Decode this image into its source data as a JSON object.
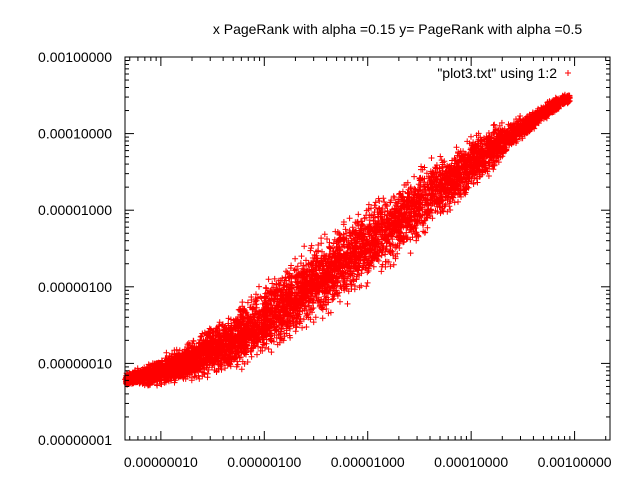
{
  "chart_data": {
    "type": "scatter",
    "title": "x PageRank with alpha =0.15 y= PageRank with alpha =0.5",
    "xlabel": "",
    "ylabel": "",
    "x_scale": "log",
    "y_scale": "log",
    "xlim": [
      4.5e-08,
      0.0022
    ],
    "ylim": [
      1e-08,
      0.001
    ],
    "x_ticks": [
      1e-07,
      1e-06,
      1e-05,
      0.0001,
      0.001
    ],
    "x_tick_labels": [
      "0.00000010",
      "0.00000100",
      "0.00001000",
      "0.00010000",
      "0.00100000"
    ],
    "y_ticks": [
      1e-08,
      1e-07,
      1e-06,
      1e-05,
      0.0001,
      0.001
    ],
    "y_tick_labels": [
      "0.00000001",
      "0.00000010",
      "0.00000100",
      "0.00001000",
      "0.00010000",
      "0.00100000"
    ],
    "grid": false,
    "legend": {
      "position": "top-right",
      "entries": [
        "\"plot3.txt\" using 1:2"
      ]
    },
    "series": [
      {
        "name": "\"plot3.txt\" using 1:2",
        "color": "#ff0000",
        "marker": "plus",
        "points": [
          [
            4.5e-08,
            6.2e-08
          ],
          [
            5e-08,
            6.3e-08
          ],
          [
            5.5e-08,
            6.4e-08
          ],
          [
            6e-08,
            6.6e-08
          ],
          [
            7e-08,
            6.8e-08
          ],
          [
            8e-08,
            7.1e-08
          ],
          [
            9e-08,
            7.4e-08
          ],
          [
            1e-07,
            7.7e-08
          ],
          [
            1.2e-07,
            8.3e-08
          ],
          [
            1.5e-07,
            9.2e-08
          ],
          [
            2e-07,
            1.1e-07
          ],
          [
            3e-07,
            1.4e-07
          ],
          [
            5e-07,
            2e-07
          ],
          [
            7e-07,
            2.7e-07
          ],
          [
            1e-06,
            3.8e-07
          ],
          [
            1.5e-06,
            5.5e-07
          ],
          [
            2e-06,
            7.2e-07
          ],
          [
            3e-06,
            1.1e-06
          ],
          [
            5e-06,
            1.8e-06
          ],
          [
            7e-06,
            2.5e-06
          ],
          [
            1e-05,
            3.7e-06
          ],
          [
            1.5e-05,
            5.5e-06
          ],
          [
            2e-05,
            7.5e-06
          ],
          [
            3e-05,
            1.1e-05
          ],
          [
            5e-05,
            2e-05
          ],
          [
            0.0001,
            4e-05
          ],
          [
            0.0002,
            8e-05
          ],
          [
            0.0004,
            0.00015
          ],
          [
            0.0006,
            0.00022
          ],
          [
            0.0008,
            0.00028
          ]
        ]
      }
    ]
  }
}
